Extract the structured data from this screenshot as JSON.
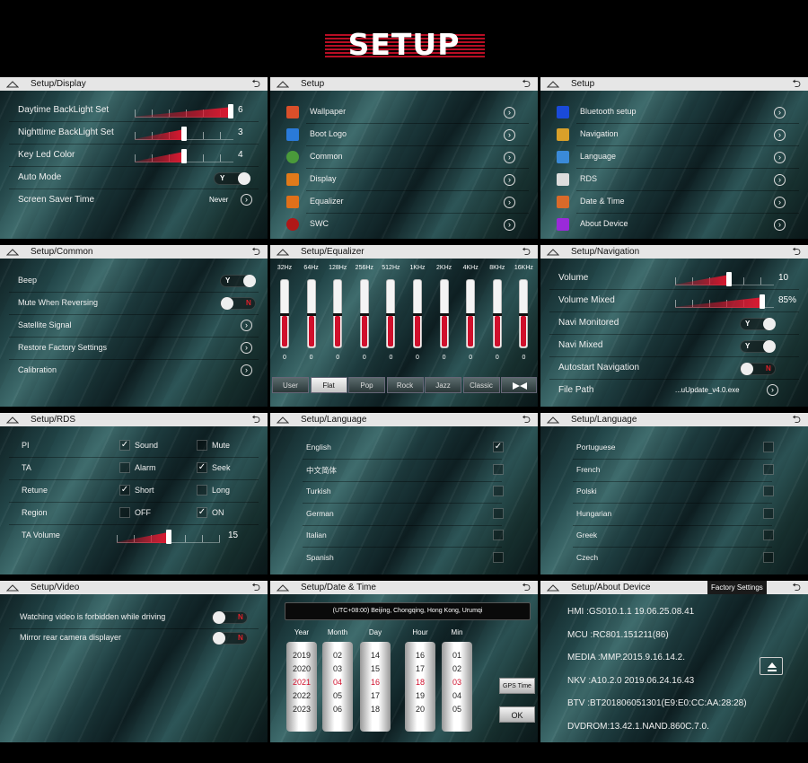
{
  "page_title": "SETUP",
  "back_glyph": "⮌",
  "panels": {
    "display": {
      "title": "Setup/Display",
      "rows": [
        {
          "label": "Daytime BackLight Set",
          "value": "6",
          "fraction": 1.0
        },
        {
          "label": "Nighttime BackLight Set",
          "value": "3",
          "fraction": 0.5
        },
        {
          "label": "Key Led Color",
          "value": "4",
          "fraction": 0.5
        },
        {
          "label": "Auto Mode",
          "value": "Y"
        },
        {
          "label": "Screen Saver Time",
          "value": "Never"
        }
      ]
    },
    "setup1": {
      "title": "Setup",
      "items": [
        {
          "label": "Wallpaper",
          "icon": "wallpaper-icon",
          "color": "#d94f2a"
        },
        {
          "label": "Boot Logo",
          "icon": "boot-logo-icon",
          "color": "#2a7ad9"
        },
        {
          "label": "Common",
          "icon": "gear-icon",
          "color": "#4a9a3a"
        },
        {
          "label": "Display",
          "icon": "display-icon",
          "color": "#e07a1a"
        },
        {
          "label": "Equalizer",
          "icon": "equalizer-icon",
          "color": "#e0701a"
        },
        {
          "label": "SWC",
          "icon": "steering-wheel-icon",
          "color": "#b01818"
        }
      ]
    },
    "setup2": {
      "title": "Setup",
      "items": [
        {
          "label": "Bluetooth setup",
          "icon": "bluetooth-icon",
          "color": "#1a4ad9"
        },
        {
          "label": "Navigation",
          "icon": "navigation-icon",
          "color": "#d9a02a"
        },
        {
          "label": "Language",
          "icon": "language-icon",
          "color": "#3a8ad9"
        },
        {
          "label": "RDS",
          "icon": "rds-icon",
          "color": "#dddddd"
        },
        {
          "label": "Date & Time",
          "icon": "clock-icon",
          "color": "#d96a2a"
        },
        {
          "label": "About Device",
          "icon": "info-icon",
          "color": "#9a2ad9"
        }
      ]
    },
    "common": {
      "title": "Setup/Common",
      "rows": [
        {
          "label": "Beep",
          "value": "Y"
        },
        {
          "label": "Mute When Reversing",
          "value": "N"
        },
        {
          "label": "Satellite Signal"
        },
        {
          "label": "Restore Factory Settings"
        },
        {
          "label": "Calibration"
        }
      ]
    },
    "equalizer": {
      "title": "Setup/Equalizer",
      "bands": [
        {
          "f": "32Hz",
          "v": "0"
        },
        {
          "f": "64Hz",
          "v": "0"
        },
        {
          "f": "128Hz",
          "v": "0"
        },
        {
          "f": "256Hz",
          "v": "0"
        },
        {
          "f": "512Hz",
          "v": "0"
        },
        {
          "f": "1KHz",
          "v": "0"
        },
        {
          "f": "2KHz",
          "v": "0"
        },
        {
          "f": "4KHz",
          "v": "0"
        },
        {
          "f": "8KHz",
          "v": "0"
        },
        {
          "f": "16KHz",
          "v": "0"
        }
      ],
      "presets": [
        "User",
        "Flat",
        "Pop",
        "Rock",
        "Jazz",
        "Classic"
      ],
      "selected": "Flat"
    },
    "navigation": {
      "title": "Setup/Navigation",
      "rows": [
        {
          "label": "Volume",
          "value": "10",
          "fraction": 0.55
        },
        {
          "label": "Volume Mixed",
          "value": "85%",
          "fraction": 0.85
        },
        {
          "label": "Navi Monitored",
          "value": "Y"
        },
        {
          "label": "Navi Mixed",
          "value": "Y"
        },
        {
          "label": "Autostart Navigation",
          "value": "N"
        },
        {
          "label": "File Path",
          "value": "...uUpdate_v4.0.exe"
        }
      ]
    },
    "rds": {
      "title": "Setup/RDS",
      "rows": [
        {
          "label": "PI",
          "a": "Sound",
          "a_on": true,
          "b": "Mute",
          "b_on": false
        },
        {
          "label": "TA",
          "a": "Alarm",
          "a_on": false,
          "b": "Seek",
          "b_on": true
        },
        {
          "label": "Retune",
          "a": "Short",
          "a_on": true,
          "b": "Long",
          "b_on": false
        },
        {
          "label": "Region",
          "a": "OFF",
          "a_on": false,
          "b": "ON",
          "b_on": true
        }
      ],
      "volume": {
        "label": "TA Volume",
        "value": "15",
        "fraction": 0.5
      }
    },
    "lang1": {
      "title": "Setup/Language",
      "items": [
        {
          "label": "English",
          "on": true
        },
        {
          "label": "中文简体",
          "on": false
        },
        {
          "label": "Turkish",
          "on": false
        },
        {
          "label": "German",
          "on": false
        },
        {
          "label": "Italian",
          "on": false
        },
        {
          "label": "Spanish",
          "on": false
        }
      ]
    },
    "lang2": {
      "title": "Setup/Language",
      "items": [
        {
          "label": "Portuguese",
          "on": false
        },
        {
          "label": "French",
          "on": false
        },
        {
          "label": "Polski",
          "on": false
        },
        {
          "label": "Hungarian",
          "on": false
        },
        {
          "label": "Greek",
          "on": false
        },
        {
          "label": "Czech",
          "on": false
        }
      ]
    },
    "video": {
      "title": "Setup/Video",
      "rows": [
        {
          "label": "Watching video is forbidden while driving",
          "value": "N"
        },
        {
          "label": "Mirror rear camera displayer",
          "value": "N"
        }
      ]
    },
    "datetime": {
      "title": "Setup/Date & Time",
      "timezone": "(UTC+08:00) Beijing, Chongqing, Hong Kong, Urumqi",
      "columns": [
        {
          "head": "Year",
          "vals": [
            "2019",
            "2020",
            "2021",
            "2022",
            "2023"
          ]
        },
        {
          "head": "Month",
          "vals": [
            "02",
            "03",
            "04",
            "05",
            "06"
          ]
        },
        {
          "head": "Day",
          "vals": [
            "14",
            "15",
            "16",
            "17",
            "18"
          ]
        },
        {
          "head": "Hour",
          "vals": [
            "16",
            "17",
            "18",
            "19",
            "20"
          ]
        },
        {
          "head": "Min",
          "vals": [
            "01",
            "02",
            "03",
            "04",
            "05"
          ]
        }
      ],
      "gps_button": "GPS Time",
      "ok_button": "OK"
    },
    "about": {
      "title": "Setup/About Device",
      "factory_button": "Factory Settings",
      "lines": [
        "HMI  :GS010.1.1   19.06.25.08.41",
        "MCU :RC801.151211(86)",
        "MEDIA :MMP.2015.9.16.14.2.",
        "NKV :A10.2.0 2019.06.24.16.43",
        "BTV  :BT201806051301(E9:E0:CC:AA:28:28)",
        "DVDROM:13.42.1.NAND.860C.7.0."
      ]
    }
  },
  "colors": {
    "accent": "#e01830",
    "header_bg": "#e6e6e6"
  }
}
